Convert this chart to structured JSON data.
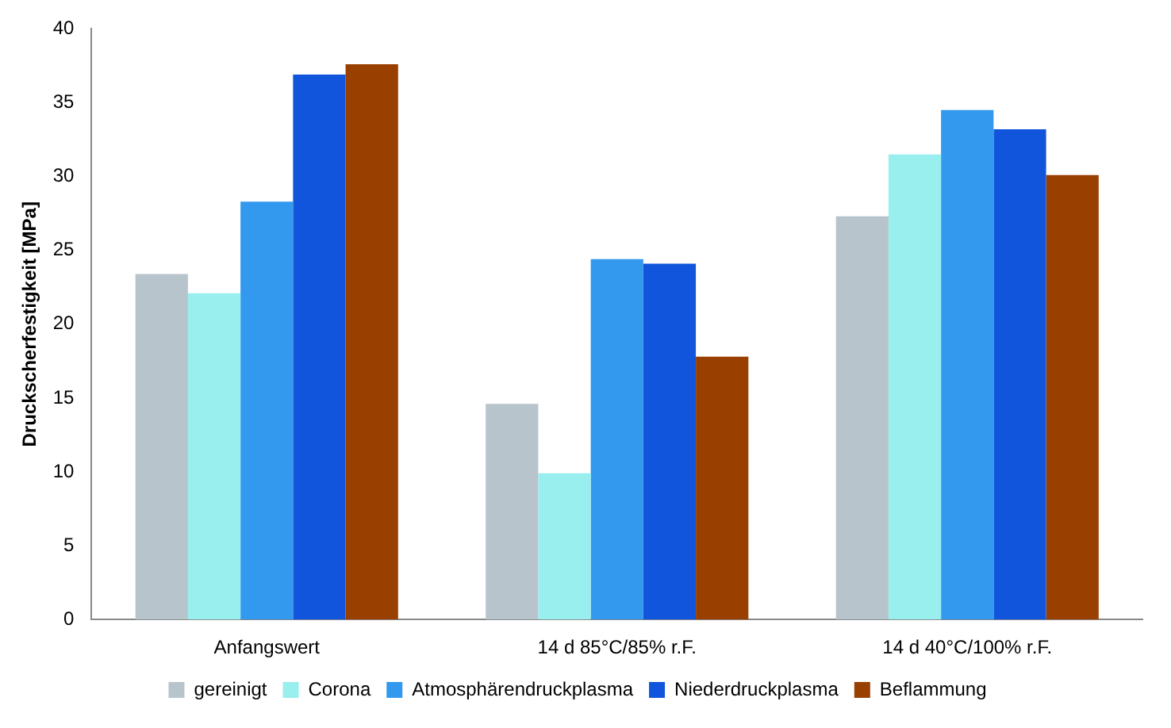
{
  "chart_data": {
    "type": "bar",
    "ylabel": "Druckscherfestigkeit [MPa]",
    "categories": [
      "Anfangswert",
      "14 d 85°C/85% r.F.",
      "14 d 40°C/100% r.F."
    ],
    "series": [
      {
        "name": "gereinigt",
        "color": "#b8c4cc",
        "values": [
          23.4,
          14.6,
          27.3
        ]
      },
      {
        "name": "Corona",
        "color": "#99eeee",
        "values": [
          22.1,
          9.9,
          31.5
        ]
      },
      {
        "name": "Atmosphärendruckplasma",
        "color": "#3399ee",
        "values": [
          28.3,
          24.4,
          34.5
        ]
      },
      {
        "name": "Niederdruckplasma",
        "color": "#1155dd",
        "values": [
          36.9,
          24.1,
          33.2
        ]
      },
      {
        "name": "Beflammung",
        "color": "#993f00",
        "values": [
          37.6,
          17.8,
          30.1
        ]
      }
    ],
    "ylim": [
      0,
      40
    ],
    "yticks": [
      0,
      5,
      10,
      15,
      20,
      25,
      30,
      35,
      40
    ],
    "grid": false,
    "legend": "bottom"
  }
}
